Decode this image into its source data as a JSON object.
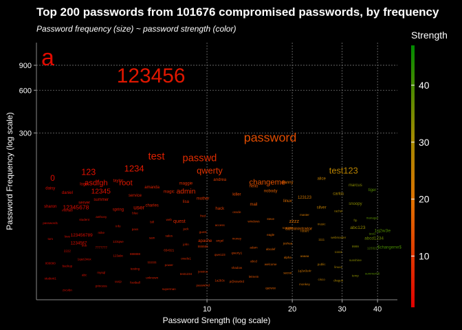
{
  "chart_data": {
    "type": "scatter",
    "title": "Top 200 passwords from 101676 compromised passwords, by frequency",
    "subtitle": "Password frequency (size) ~ password strength (color)",
    "xlabel": "Password Srength (log scale)",
    "ylabel": "Password Frequency  (log scale)",
    "x_scale": "log",
    "y_scale": "log",
    "xlim": [
      2.5,
      47
    ],
    "ylim": [
      20,
      1300
    ],
    "x_ticks": [
      "10",
      "20",
      "30",
      "40"
    ],
    "y_ticks": [
      "300",
      "600",
      "900"
    ],
    "grid": true,
    "legend": {
      "title": "Strength",
      "position": "right",
      "ticks": [
        "10",
        "20",
        "30",
        "40"
      ],
      "range": [
        1,
        47
      ],
      "colors": [
        "#e00000",
        "#e07000",
        "#a08a00",
        "#008a00"
      ]
    },
    "points": [
      {
        "label": "a",
        "x": 2.6,
        "y": 900
      },
      {
        "label": "123456",
        "x": 4.8,
        "y": 680
      },
      {
        "label": "password",
        "x": 13.5,
        "y": 260
      },
      {
        "label": "test",
        "x": 6.2,
        "y": 195
      },
      {
        "label": "passwd",
        "x": 8.2,
        "y": 190
      },
      {
        "label": "test123",
        "x": 27,
        "y": 155
      },
      {
        "label": "1234",
        "x": 5.1,
        "y": 160
      },
      {
        "label": "123",
        "x": 3.6,
        "y": 152
      },
      {
        "label": "qwerty",
        "x": 9.2,
        "y": 155
      },
      {
        "label": "changeme",
        "x": 14.1,
        "y": 130
      },
      {
        "label": "0",
        "x": 2.8,
        "y": 138
      },
      {
        "label": "asdfgh",
        "x": 3.7,
        "y": 128
      },
      {
        "label": "root",
        "x": 4.9,
        "y": 128
      },
      {
        "label": "12345",
        "x": 3.9,
        "y": 112
      },
      {
        "label": "admin",
        "x": 7.8,
        "y": 112
      },
      {
        "label": "administrator",
        "x": 18.9,
        "y": 62
      },
      {
        "label": "abc123",
        "x": 32,
        "y": 63
      },
      {
        "label": "1q2w3e",
        "x": 39,
        "y": 60
      },
      {
        "label": "abcd1234",
        "x": 36,
        "y": 53
      },
      {
        "label": "$changeme$",
        "x": 40,
        "y": 46
      },
      {
        "label": "quest",
        "x": 7.6,
        "y": 70
      },
      {
        "label": "user",
        "x": 5.5,
        "y": 87
      },
      {
        "label": "123456789",
        "x": 3.3,
        "y": 56
      },
      {
        "label": "1234567",
        "x": 3.3,
        "y": 49
      },
      {
        "label": "12345678",
        "x": 3.1,
        "y": 87
      },
      {
        "label": "apache",
        "x": 9.3,
        "y": 51
      },
      {
        "label": "zzzz",
        "x": 19.5,
        "y": 70
      }
    ],
    "minor_labels": [
      "daisy",
      "login",
      "taylor",
      "amanda",
      "maggie",
      "andrea",
      "hello",
      "danny",
      "alice",
      "marcus",
      "daniel",
      "summer",
      "service",
      "magic",
      "mother",
      "killer",
      "nobody",
      "123123",
      "carlos",
      "tiger",
      "sharon",
      "server",
      "spring",
      "charles",
      "lisa",
      "hack",
      "mail",
      "linux",
      "silver",
      "snoopy",
      "michael",
      "anthony",
      "blue",
      "web",
      "fred",
      "oracle",
      "steve",
      "master",
      "rachel",
      "manager",
      "password1",
      "student",
      "info",
      "bill",
      "jack",
      "access",
      "windows",
      "root123",
      "music",
      "ftp",
      "love",
      "mike",
      "pass",
      "sales",
      "guest",
      "money",
      "eagle",
      "robert",
      "webmaster",
      "test1",
      "tom",
      "bob",
      "123qwe",
      "sam",
      "john",
      "angel",
      "adam",
      "joshua",
      "1111",
      "9999",
      "2222",
      "7777777",
      "888888",
      "654321",
      "555555",
      "qwerty1",
      "abcdef",
      "aaaaa",
      "11111",
      "123321",
      "000000",
      "1qaz2wsx",
      "123abc",
      "111111",
      "oracle1",
      "qwe123",
      "abcd",
      "alpha",
      "public",
      "sunshine",
      "backup",
      "mysql",
      "testing",
      "power",
      "jessica",
      "shadow",
      "welcome",
      "1q2w3e4r",
      "linux1",
      "summer08",
      "student1",
      "abc",
      "uucp",
      "unknown",
      "test1234",
      "1a2b3c",
      "letmein",
      "secret",
      "cisco",
      "temp",
      "zxcvbn",
      "princess",
      "football",
      "superman",
      "passw0rd",
      "p@ssw0rd",
      "qazwsx",
      "monkey",
      "dragon"
    ]
  }
}
